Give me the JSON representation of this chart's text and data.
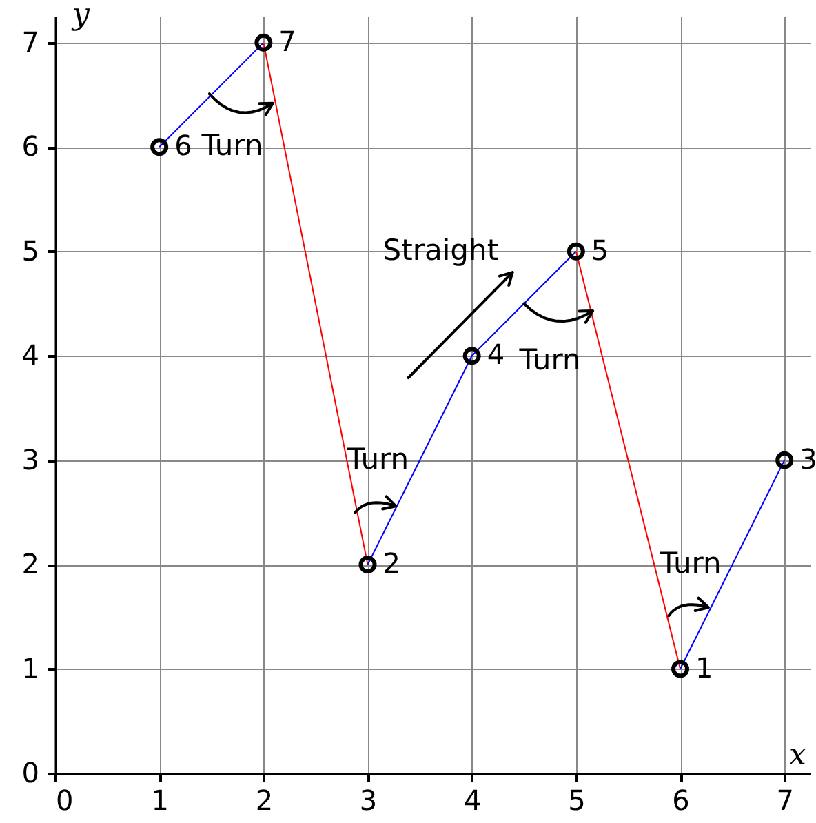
{
  "chart_data": {
    "type": "line",
    "xlabel": "x",
    "ylabel": "y",
    "xlim": [
      0,
      7.25
    ],
    "ylim": [
      0,
      7.25
    ],
    "xticks": [
      0,
      1,
      2,
      3,
      4,
      5,
      6,
      7
    ],
    "yticks": [
      0,
      1,
      2,
      3,
      4,
      5,
      6,
      7
    ],
    "grid": true,
    "series": [
      {
        "color": "#0000ff",
        "x": [
          1,
          2
        ],
        "values": [
          6,
          7
        ]
      },
      {
        "color": "#ff0000",
        "x": [
          2,
          3
        ],
        "values": [
          7,
          2
        ]
      },
      {
        "color": "#0000ff",
        "x": [
          3,
          4,
          5
        ],
        "values": [
          2,
          4,
          5
        ]
      },
      {
        "color": "#ff0000",
        "x": [
          5,
          6
        ],
        "values": [
          5,
          1
        ]
      },
      {
        "color": "#0000ff",
        "x": [
          6,
          7
        ],
        "values": [
          1,
          3
        ]
      },
      {
        "type": "scatter",
        "color": "#000000",
        "marker": "circle",
        "x": [
          1,
          2,
          3,
          4,
          5,
          6,
          7
        ],
        "values": [
          6,
          7,
          2,
          4,
          5,
          1,
          3
        ],
        "value_labels": [
          "6",
          "7",
          "2",
          "4",
          "5",
          "1",
          "3"
        ]
      }
    ],
    "annotations": [
      "Turn",
      "Straight",
      "Turn",
      "Turn",
      "Turn"
    ]
  }
}
